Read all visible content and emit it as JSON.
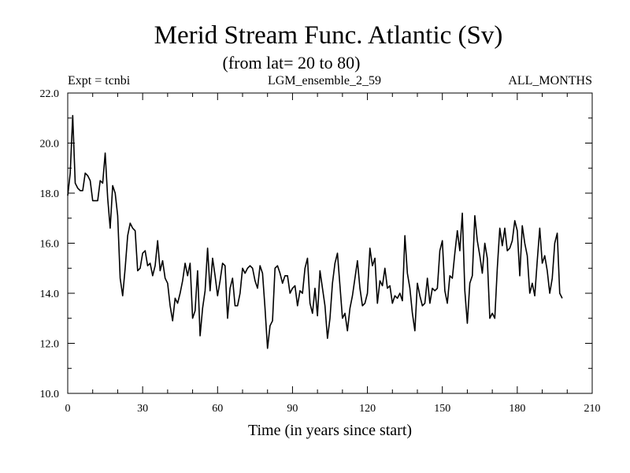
{
  "chart_data": {
    "type": "line",
    "title": "Merid Stream Func. Atlantic (Sv)",
    "subtitle": "(from lat= 20 to 80)",
    "header_left": "Expt = tcnbi",
    "header_center": "LGM_ensemble_2_59",
    "header_right": "ALL_MONTHS",
    "xlabel": "Time (in years since start)",
    "ylabel": "",
    "xlim": [
      0,
      210
    ],
    "ylim": [
      10,
      22
    ],
    "x_ticks": [
      0,
      30,
      60,
      90,
      120,
      150,
      180,
      210
    ],
    "x_tick_labels": [
      "0",
      "30",
      "60",
      "90",
      "120",
      "150",
      "180",
      "210"
    ],
    "y_ticks": [
      10,
      12,
      14,
      16,
      18,
      20,
      22
    ],
    "y_tick_labels": [
      "10.0",
      "12.0",
      "14.0",
      "16.0",
      "18.0",
      "20.0",
      "22.0"
    ],
    "x_minor_step": 10,
    "y_minor_step": 1,
    "grid": false,
    "series": [
      {
        "name": "Merid Stream Func. Atlantic",
        "x_start": 0,
        "x_step": 1,
        "values": [
          17.9,
          18.8,
          21.1,
          18.4,
          18.2,
          18.1,
          18.1,
          18.8,
          18.7,
          18.5,
          17.7,
          17.7,
          17.7,
          18.5,
          18.4,
          19.6,
          17.8,
          16.6,
          18.3,
          18.0,
          17.1,
          14.6,
          13.9,
          15.0,
          16.3,
          16.8,
          16.6,
          16.5,
          14.9,
          15.0,
          15.6,
          15.7,
          15.1,
          15.2,
          14.7,
          15.1,
          16.1,
          14.9,
          15.3,
          14.6,
          14.4,
          13.5,
          12.9,
          13.8,
          13.6,
          14.0,
          14.5,
          15.2,
          14.7,
          15.2,
          13.0,
          13.3,
          14.9,
          12.3,
          13.4,
          14.1,
          15.8,
          14.1,
          15.4,
          14.7,
          13.9,
          14.5,
          15.2,
          15.1,
          13.0,
          14.2,
          14.6,
          13.5,
          13.5,
          14.0,
          15.0,
          14.8,
          15.0,
          15.1,
          15.0,
          14.5,
          14.2,
          15.1,
          14.8,
          13.4,
          11.8,
          12.7,
          12.9,
          15.0,
          15.1,
          14.8,
          14.4,
          14.7,
          14.7,
          14.0,
          14.2,
          14.3,
          13.5,
          14.1,
          14.0,
          15.0,
          15.4,
          13.6,
          13.2,
          14.2,
          13.1,
          14.9,
          14.2,
          13.5,
          12.2,
          13.0,
          14.4,
          15.2,
          15.6,
          14.3,
          13.0,
          13.2,
          12.5,
          13.4,
          13.9,
          14.6,
          15.3,
          14.2,
          13.5,
          13.6,
          14.0,
          15.8,
          15.1,
          15.4,
          13.6,
          14.5,
          14.3,
          15.0,
          14.2,
          14.3,
          13.6,
          13.9,
          13.8,
          14.0,
          13.7,
          16.3,
          14.8,
          14.2,
          13.2,
          12.5,
          14.4,
          13.9,
          13.5,
          13.6,
          14.6,
          13.6,
          14.2,
          14.1,
          14.2,
          15.7,
          16.1,
          14.1,
          13.6,
          14.7,
          14.6,
          15.6,
          16.5,
          15.7,
          17.2,
          14.1,
          12.8,
          14.4,
          14.7,
          17.1,
          16.1,
          15.5,
          14.8,
          16.0,
          15.4,
          13.0,
          13.2,
          13.0,
          15.0,
          16.6,
          15.9,
          16.6,
          15.7,
          15.8,
          16.1,
          16.9,
          16.5,
          14.7,
          16.7,
          16.0,
          15.5,
          14.0,
          14.4,
          13.9,
          15.3,
          16.6,
          15.2,
          15.5,
          14.9,
          14.0,
          14.6,
          16.0,
          16.4,
          14.0,
          13.8
        ]
      }
    ]
  }
}
